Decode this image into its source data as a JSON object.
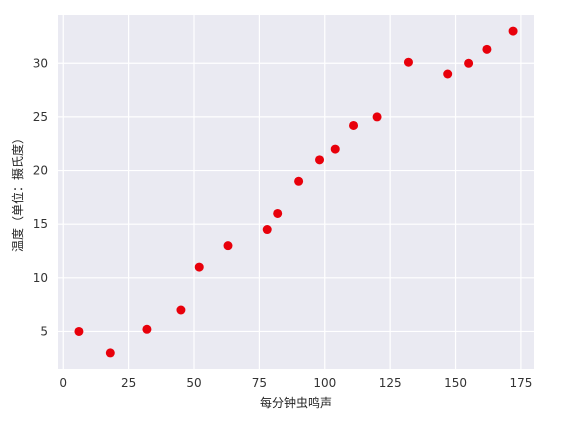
{
  "chart_data": {
    "type": "scatter",
    "title": "",
    "xlabel": "每分钟虫鸣声",
    "ylabel": "温度（单位：摄氏度）",
    "xlim": [
      -2,
      180
    ],
    "ylim": [
      1.5,
      34.5
    ],
    "xticks": [
      0,
      25,
      50,
      75,
      100,
      125,
      150,
      175
    ],
    "yticks": [
      5,
      10,
      15,
      20,
      25,
      30
    ],
    "grid": true,
    "background": "#eaeaf2",
    "gridColor": "#ffffff",
    "markerColor": "#e8000b",
    "points": [
      {
        "x": 6,
        "y": 5
      },
      {
        "x": 18,
        "y": 3
      },
      {
        "x": 32,
        "y": 5.2
      },
      {
        "x": 45,
        "y": 7
      },
      {
        "x": 52,
        "y": 11
      },
      {
        "x": 63,
        "y": 13
      },
      {
        "x": 78,
        "y": 14.5
      },
      {
        "x": 82,
        "y": 16
      },
      {
        "x": 90,
        "y": 19
      },
      {
        "x": 98,
        "y": 21
      },
      {
        "x": 104,
        "y": 22
      },
      {
        "x": 111,
        "y": 24.2
      },
      {
        "x": 120,
        "y": 25
      },
      {
        "x": 132,
        "y": 30.1
      },
      {
        "x": 147,
        "y": 29
      },
      {
        "x": 155,
        "y": 30
      },
      {
        "x": 162,
        "y": 31.3
      },
      {
        "x": 172,
        "y": 33
      }
    ]
  }
}
